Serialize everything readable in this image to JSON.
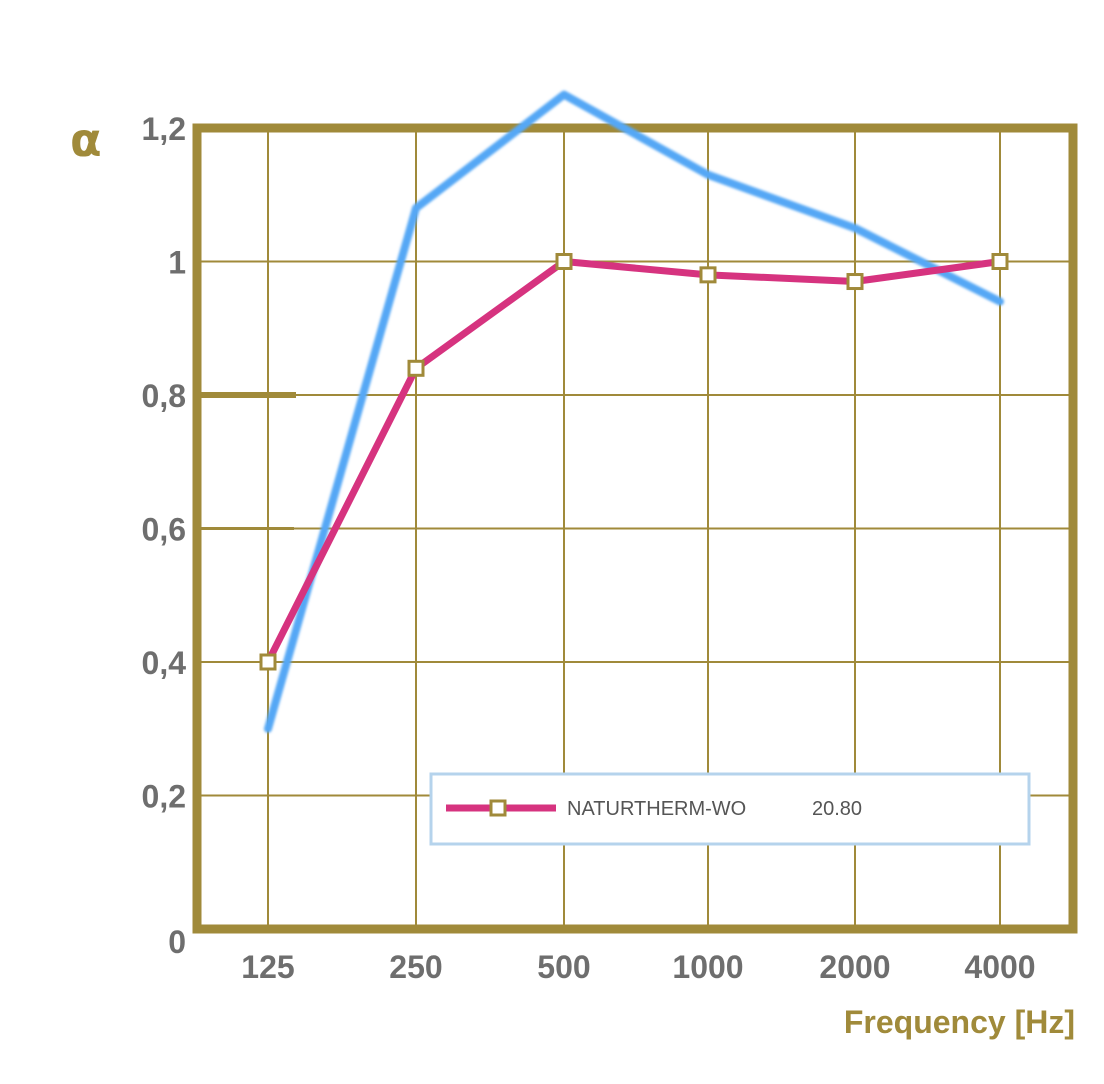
{
  "colors": {
    "frame": "#a08a3a",
    "grid": "#a08a3a",
    "tick_text": "#6e6e6e",
    "series_primary": "#d6337f",
    "series_secondary": "#55a7f5",
    "legend_border": "#b5d3ec"
  },
  "chart_data": {
    "type": "line",
    "x": [
      "125",
      "250",
      "500",
      "1000",
      "2000",
      "4000"
    ],
    "x_axis_label": "Frequency [Hz]",
    "y_axis_label": "α",
    "y_ticks": [
      "0",
      "0,2",
      "0,4",
      "0,6",
      "0,8",
      "1",
      "1,2"
    ],
    "ylim": [
      0,
      1.2
    ],
    "grid": true,
    "legend_position": "bottom-center",
    "series": [
      {
        "name": "NATURTHERM-WO",
        "legend_value": "20.80",
        "values": [
          0.4,
          0.84,
          1.0,
          0.98,
          0.97,
          1.0
        ],
        "markers": "square",
        "in_legend": true
      },
      {
        "values": [
          0.3,
          1.08,
          1.25,
          1.13,
          1.05,
          0.94
        ],
        "markers": "none",
        "in_legend": false
      }
    ]
  }
}
